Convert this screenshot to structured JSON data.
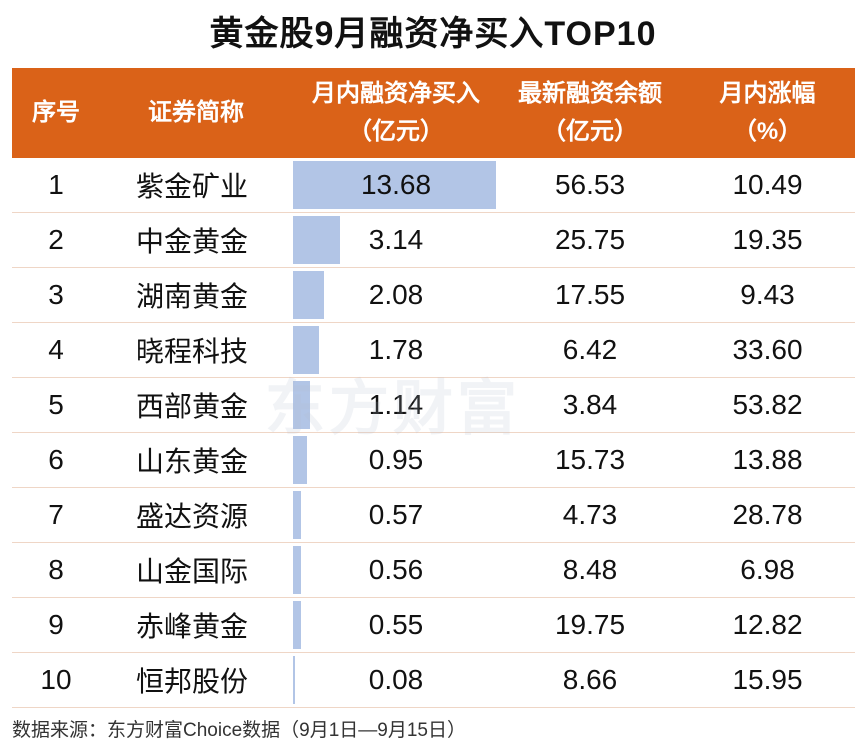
{
  "title": "黄金股9月融资净买入TOP10",
  "headers": [
    {
      "line1": "序号",
      "line2": ""
    },
    {
      "line1": "证券简称",
      "line2": ""
    },
    {
      "line1": "月内融资净买入",
      "line2": "（亿元）"
    },
    {
      "line1": "最新融资余额",
      "line2": "（亿元）"
    },
    {
      "line1": "月内涨幅",
      "line2": "（%）"
    }
  ],
  "rows": [
    {
      "rank": "1",
      "name": "紫金矿业",
      "net_buy": "13.68",
      "balance": "56.53",
      "change": "10.49"
    },
    {
      "rank": "2",
      "name": "中金黄金",
      "net_buy": "3.14",
      "balance": "25.75",
      "change": "19.35"
    },
    {
      "rank": "3",
      "name": "湖南黄金",
      "net_buy": "2.08",
      "balance": "17.55",
      "change": "9.43"
    },
    {
      "rank": "4",
      "name": "晓程科技",
      "net_buy": "1.78",
      "balance": "6.42",
      "change": "33.60"
    },
    {
      "rank": "5",
      "name": "西部黄金",
      "net_buy": "1.14",
      "balance": "3.84",
      "change": "53.82"
    },
    {
      "rank": "6",
      "name": "山东黄金",
      "net_buy": "0.95",
      "balance": "15.73",
      "change": "13.88"
    },
    {
      "rank": "7",
      "name": "盛达资源",
      "net_buy": "0.57",
      "balance": "4.73",
      "change": "28.78"
    },
    {
      "rank": "8",
      "name": "山金国际",
      "net_buy": "0.56",
      "balance": "8.48",
      "change": "6.98"
    },
    {
      "rank": "9",
      "name": "赤峰黄金",
      "net_buy": "0.55",
      "balance": "19.75",
      "change": "12.82"
    },
    {
      "rank": "10",
      "name": "恒邦股份",
      "net_buy": "0.08",
      "balance": "8.66",
      "change": "15.95"
    }
  ],
  "watermark": "东方财富",
  "source": "数据来源：东方财富Choice数据（9月1日—9月15日）",
  "colors": {
    "header_bg": "#DA6218",
    "bar": "#b2c5e6",
    "divider": "#efd6c6"
  }
}
